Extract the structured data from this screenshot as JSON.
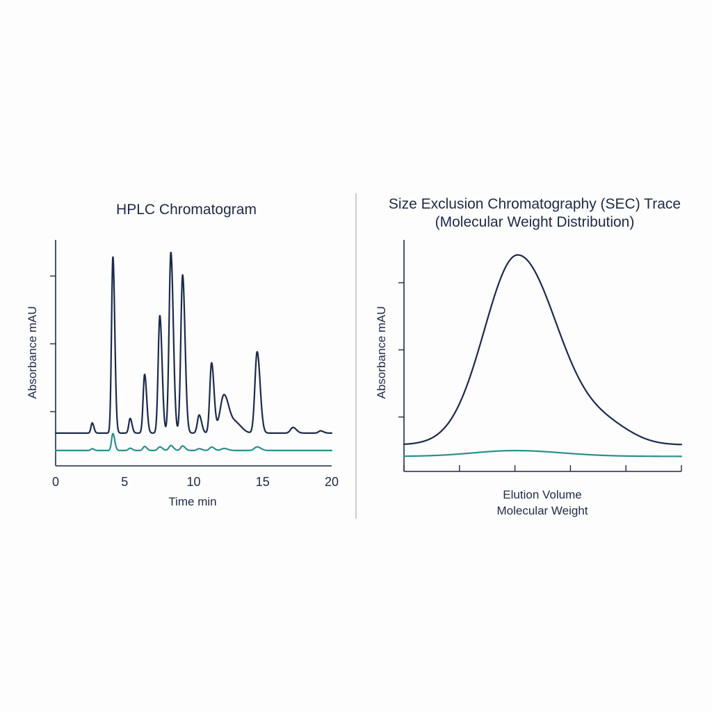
{
  "colors": {
    "primary": "#1b2a4a",
    "secondary": "#2a8f8c",
    "axis": "#1d2a44"
  },
  "chart_data": [
    {
      "type": "line",
      "title": "HPLC Chromatogram",
      "xlabel": "Time min",
      "ylabel": "Absorbance mAU",
      "xlim": [
        0,
        20
      ],
      "ylim": [
        0,
        100
      ],
      "x_ticks": [
        0,
        5,
        10,
        15,
        20
      ],
      "y_tick_count": 3,
      "grid": false,
      "legend": "none",
      "series": [
        {
          "color": "#1b2a4a",
          "baseline": 14.5,
          "peaks": [
            {
              "x": 2.65,
              "height": 4.5,
              "width": 0.09
            },
            {
              "x": 4.15,
              "height": 78,
              "width": 0.1
            },
            {
              "x": 5.4,
              "height": 6.5,
              "width": 0.1
            },
            {
              "x": 6.45,
              "height": 26,
              "width": 0.11
            },
            {
              "x": 7.55,
              "height": 52,
              "width": 0.12
            },
            {
              "x": 8.35,
              "height": 80,
              "width": 0.13
            },
            {
              "x": 9.2,
              "height": 70,
              "width": 0.13
            },
            {
              "x": 10.4,
              "height": 8,
              "width": 0.13
            },
            {
              "x": 11.3,
              "height": 31,
              "width": 0.13
            },
            {
              "x": 12.2,
              "height": 17,
              "width": 0.28
            },
            {
              "x": 13.1,
              "height": 4,
              "width": 0.3
            },
            {
              "x": 14.6,
              "height": 36,
              "width": 0.16
            },
            {
              "x": 17.2,
              "height": 2.5,
              "width": 0.18
            },
            {
              "x": 19.2,
              "height": 1,
              "width": 0.15
            }
          ]
        },
        {
          "color": "#2a8f8c",
          "baseline": 6.8,
          "peaks": [
            {
              "x": 2.65,
              "height": 0.8,
              "width": 0.1
            },
            {
              "x": 4.15,
              "height": 7.5,
              "width": 0.1
            },
            {
              "x": 5.4,
              "height": 1.0,
              "width": 0.12
            },
            {
              "x": 6.45,
              "height": 1.8,
              "width": 0.12
            },
            {
              "x": 7.55,
              "height": 1.6,
              "width": 0.14
            },
            {
              "x": 8.35,
              "height": 2.2,
              "width": 0.14
            },
            {
              "x": 9.2,
              "height": 2.0,
              "width": 0.14
            },
            {
              "x": 10.4,
              "height": 0.8,
              "width": 0.15
            },
            {
              "x": 11.3,
              "height": 1.5,
              "width": 0.15
            },
            {
              "x": 12.2,
              "height": 0.9,
              "width": 0.2
            },
            {
              "x": 14.6,
              "height": 1.6,
              "width": 0.2
            }
          ]
        }
      ]
    },
    {
      "type": "line",
      "title": "Size Exclusion Chromatography (SEC) Trace",
      "subtitle": "(Molecular Weight Distribution)",
      "xlabel": "Elution Volume",
      "xlabel2": "Molecular Weight",
      "ylabel": "Absorbance mAU",
      "xlim": [
        0,
        10
      ],
      "ylim": [
        0,
        100
      ],
      "x_tick_count": 6,
      "y_tick_count": 3,
      "grid": false,
      "legend": "none",
      "series": [
        {
          "color": "#1b2a4a",
          "baseline": 11.5,
          "peak_x": 4.1,
          "peak_height": 82,
          "sigma_left": 1.2,
          "sigma_right": 1.45,
          "tail_height": 6,
          "tail_x": 7.4,
          "tail_width": 0.9
        },
        {
          "color": "#2a8f8c",
          "baseline": 6.5,
          "peak_x": 4.0,
          "peak_height": 2.5,
          "sigma_left": 1.5,
          "sigma_right": 1.7,
          "tail_height": 0,
          "tail_x": 0,
          "tail_width": 1
        }
      ]
    }
  ]
}
